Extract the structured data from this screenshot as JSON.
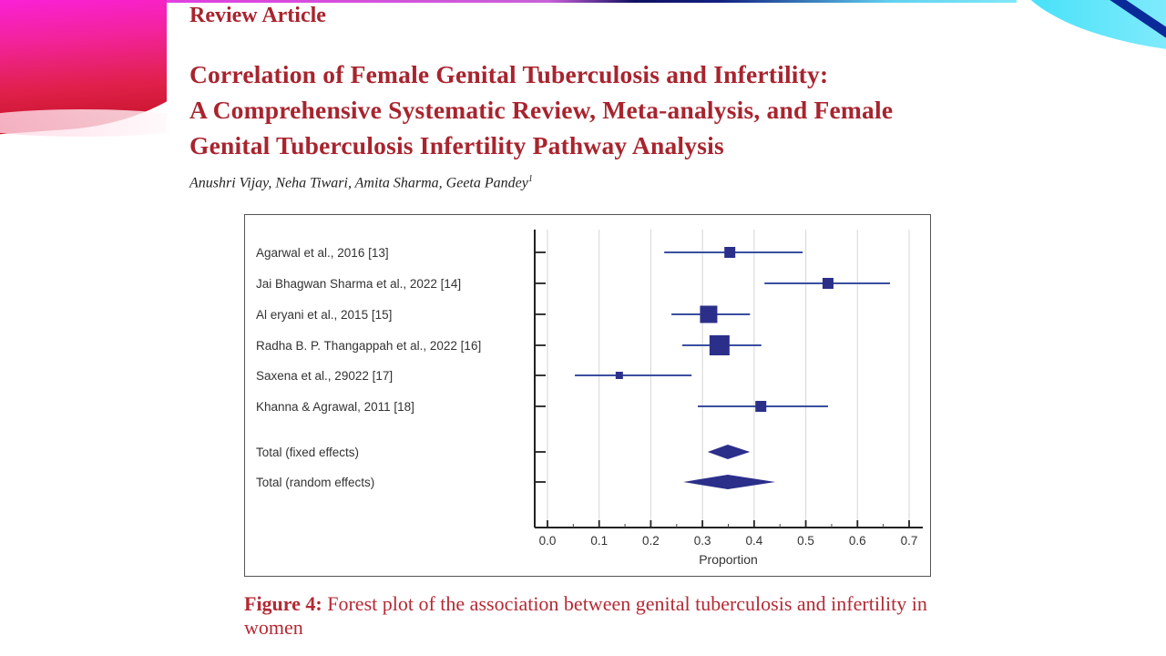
{
  "header": {
    "section_label": "Review Article",
    "title_lines": [
      "Correlation of Female Genital Tuberculosis and Infertility:",
      "A Comprehensive Systematic Review, Meta-analysis, and Female",
      "Genital Tuberculosis Infertility Pathway Analysis"
    ],
    "authors": "Anushri Vijay, Neha Tiwari, Amita Sharma, Geeta Pandey",
    "authors_superscript": "1"
  },
  "caption": {
    "label": "Figure 4:",
    "text": " Forest plot of the association between genital tuberculosis and infertility in women"
  },
  "colors": {
    "accent_text": "#a8242e",
    "marker": "#2b2f8a",
    "ci_line": "#3a4fa0"
  },
  "chart_data": {
    "type": "forest",
    "title": "",
    "xlabel": "Proportion",
    "ylabel": "",
    "xlim": [
      0.0,
      0.7
    ],
    "xticks": [
      "0.0",
      "0.1",
      "0.2",
      "0.3",
      "0.4",
      "0.5",
      "0.6",
      "0.7"
    ],
    "grid": true,
    "studies": [
      {
        "label": "Agarwal et al., 2016 [13]",
        "estimate": 0.353,
        "ci_low": 0.226,
        "ci_high": 0.494,
        "weight": "small"
      },
      {
        "label": "Jai Bhagwan Sharma et al., 2022 [14]",
        "estimate": 0.543,
        "ci_low": 0.42,
        "ci_high": 0.663,
        "weight": "small"
      },
      {
        "label": "Al eryani et al., 2015 [15]",
        "estimate": 0.312,
        "ci_low": 0.24,
        "ci_high": 0.392,
        "weight": "large"
      },
      {
        "label": "Radha B. P. Thangappah et al., 2022 [16]",
        "estimate": 0.333,
        "ci_low": 0.261,
        "ci_high": 0.414,
        "weight": "largest"
      },
      {
        "label": "Saxena et al., 29022   [17]",
        "estimate": 0.139,
        "ci_low": 0.053,
        "ci_high": 0.279,
        "weight": "smallest"
      },
      {
        "label": "Khanna & Agrawal, 2011 [18]",
        "estimate": 0.413,
        "ci_low": 0.291,
        "ci_high": 0.543,
        "weight": "small"
      }
    ],
    "pooled": [
      {
        "label": "Total (fixed effects)",
        "estimate": 0.349,
        "ci_low": 0.31,
        "ci_high": 0.392
      },
      {
        "label": "Total (random effects)",
        "estimate": 0.349,
        "ci_low": 0.263,
        "ci_high": 0.441
      }
    ]
  }
}
